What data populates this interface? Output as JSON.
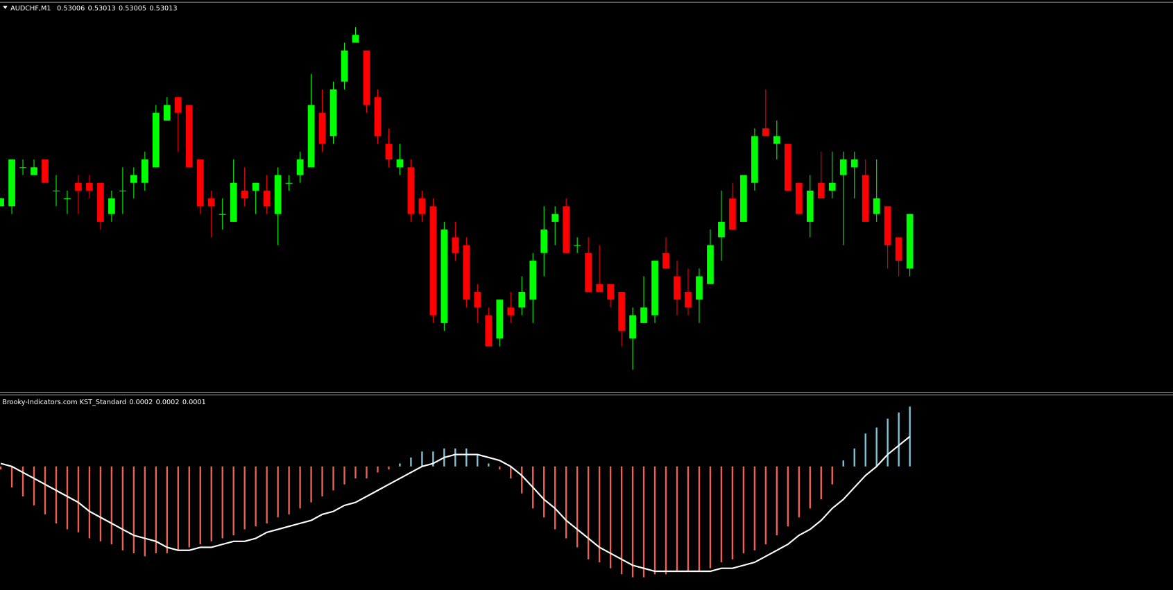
{
  "chart_data": [
    {
      "type": "candlestick",
      "title": "AUDCHF,M1",
      "up_color": "#00ff00",
      "down_color": "#ff0000",
      "ylim": [
        0.5299,
        0.5304
      ],
      "open": [
        0.53014,
        0.53014,
        0.53019,
        0.53018,
        0.5302,
        0.53016,
        0.53015,
        0.53017,
        0.53017,
        0.53017,
        0.53013,
        0.53016,
        0.53017,
        0.53017,
        0.53019,
        0.53025,
        0.53028,
        0.53027,
        0.5302,
        0.53015,
        0.53013,
        0.53012,
        0.53016,
        0.53016,
        0.53016,
        0.53013,
        0.53017,
        0.53018,
        0.53019,
        0.53026,
        0.53023,
        0.5303,
        0.53035,
        0.53034,
        0.53028,
        0.53022,
        0.53019,
        0.53019,
        0.53015,
        0.53014,
        0.52999,
        0.5301,
        0.53009,
        0.53003,
        0.53,
        0.52997,
        0.53001,
        0.53001,
        0.53002,
        0.53008,
        0.53012,
        0.53014,
        0.53009,
        0.53008,
        0.53004,
        0.53004,
        0.53003,
        0.52997,
        0.52999,
        0.53,
        0.53008,
        0.53005,
        0.53003,
        0.53002,
        0.53004,
        0.5301,
        0.53015,
        0.53012,
        0.53017,
        0.53024,
        0.53022,
        0.53022,
        0.53017,
        0.53012,
        0.53017,
        0.53016,
        0.53018,
        0.53019,
        0.53018,
        0.53013,
        0.53014,
        0.5301,
        0.53006
      ],
      "high": [
        0.53015,
        0.5302,
        0.5302,
        0.5302,
        0.5302,
        0.53018,
        0.53016,
        0.53018,
        0.53018,
        0.53017,
        0.53016,
        0.53019,
        0.53019,
        0.53021,
        0.53027,
        0.53028,
        0.53028,
        0.53027,
        0.5302,
        0.53016,
        0.53015,
        0.5302,
        0.53019,
        0.53017,
        0.53018,
        0.53019,
        0.53018,
        0.53021,
        0.53031,
        0.53029,
        0.5303,
        0.53035,
        0.53037,
        0.53034,
        0.53029,
        0.53024,
        0.53022,
        0.5302,
        0.53016,
        0.53015,
        0.53012,
        0.53012,
        0.5301,
        0.53004,
        0.53001,
        0.53002,
        0.53003,
        0.53005,
        0.53008,
        0.53014,
        0.53014,
        0.53015,
        0.5301,
        0.5301,
        0.53009,
        0.53004,
        0.53003,
        0.53001,
        0.53005,
        0.53007,
        0.5301,
        0.53007,
        0.53006,
        0.53006,
        0.53011,
        0.53016,
        0.53017,
        0.53018,
        0.53024,
        0.53029,
        0.53025,
        0.53022,
        0.53017,
        0.53018,
        0.53021,
        0.53021,
        0.53021,
        0.53021,
        0.5302,
        0.5302,
        0.53014,
        0.5301,
        0.53013
      ],
      "low": [
        0.53014,
        0.53013,
        0.53018,
        0.53018,
        0.53017,
        0.53014,
        0.53013,
        0.53013,
        0.53015,
        0.53011,
        0.53012,
        0.53013,
        0.53015,
        0.53016,
        0.53019,
        0.53025,
        0.53021,
        0.53019,
        0.53013,
        0.5301,
        0.53011,
        0.53012,
        0.53014,
        0.53013,
        0.53013,
        0.53009,
        0.53016,
        0.53017,
        0.53019,
        0.53021,
        0.53022,
        0.53029,
        0.53035,
        0.53026,
        0.53022,
        0.53019,
        0.53018,
        0.53012,
        0.53012,
        0.52999,
        0.52998,
        0.53007,
        0.53001,
        0.52999,
        0.52996,
        0.52996,
        0.52999,
        0.53,
        0.52999,
        0.53005,
        0.53009,
        0.53008,
        0.53008,
        0.53003,
        0.53003,
        0.53001,
        0.52996,
        0.52993,
        0.52999,
        0.52999,
        0.53006,
        0.53,
        0.53,
        0.52999,
        0.53004,
        0.53007,
        0.53011,
        0.53012,
        0.53016,
        0.53023,
        0.5302,
        0.53016,
        0.53013,
        0.5301,
        0.53015,
        0.53015,
        0.53009,
        0.53015,
        0.53012,
        0.53012,
        0.53006,
        0.53005,
        0.53005
      ],
      "close": [
        0.53015,
        0.5302,
        0.53019,
        0.53019,
        0.53017,
        0.53016,
        0.53015,
        0.53016,
        0.53016,
        0.53012,
        0.53015,
        0.53016,
        0.53018,
        0.5302,
        0.53026,
        0.53027,
        0.53026,
        0.53019,
        0.53014,
        0.53014,
        0.53013,
        0.53017,
        0.53015,
        0.53017,
        0.53014,
        0.53018,
        0.53017,
        0.5302,
        0.53027,
        0.53022,
        0.53029,
        0.53034,
        0.53036,
        0.53027,
        0.53023,
        0.5302,
        0.5302,
        0.53013,
        0.53013,
        0.53,
        0.53011,
        0.53008,
        0.53002,
        0.53001,
        0.52996,
        0.53002,
        0.53,
        0.53003,
        0.53007,
        0.53011,
        0.53013,
        0.53008,
        0.53009,
        0.53003,
        0.53003,
        0.53002,
        0.52998,
        0.53,
        0.53001,
        0.53007,
        0.53006,
        0.53002,
        0.53001,
        0.53005,
        0.53009,
        0.53012,
        0.53011,
        0.53018,
        0.53023,
        0.53023,
        0.53023,
        0.53016,
        0.53013,
        0.53016,
        0.53015,
        0.53017,
        0.5302,
        0.5302,
        0.53012,
        0.53015,
        0.53009,
        0.53007,
        0.53013
      ]
    },
    {
      "type": "kst",
      "title": "Brooky-Indicators.com KST_Standard",
      "header_values": [
        0.0002,
        0.0002,
        0.0001
      ],
      "ylim": [
        -0.00041,
        0.00024
      ],
      "histogram": {
        "positive_color": "#7fc6d8",
        "negative_color": "#f0604f",
        "values": [
          -1e-05,
          -7e-05,
          -0.0001,
          -0.00013,
          -0.00016,
          -0.00019,
          -0.00021,
          -0.00022,
          -0.00024,
          -0.00025,
          -0.00026,
          -0.00028,
          -0.00029,
          -0.0003,
          -0.00029,
          -0.00029,
          -0.00028,
          -0.00027,
          -0.00026,
          -0.00025,
          -0.00024,
          -0.00023,
          -0.00021,
          -0.0002,
          -0.00019,
          -0.00017,
          -0.00016,
          -0.00014,
          -0.00012,
          -0.0001,
          -8e-05,
          -6e-05,
          -4e-05,
          -4e-05,
          -2e-05,
          -1e-05,
          1e-05,
          3e-05,
          5e-05,
          5e-05,
          6e-05,
          6e-05,
          6e-05,
          4e-05,
          1e-05,
          -1e-05,
          -4e-05,
          -9e-05,
          -0.00014,
          -0.00017,
          -0.00021,
          -0.00024,
          -0.00027,
          -0.00031,
          -0.00032,
          -0.00034,
          -0.00036,
          -0.00037,
          -0.00037,
          -0.00036,
          -0.00036,
          -0.00035,
          -0.00035,
          -0.00035,
          -0.00034,
          -0.00032,
          -0.00031,
          -0.00029,
          -0.00028,
          -0.00026,
          -0.00023,
          -0.0002,
          -0.00017,
          -0.00014,
          -0.00011,
          -6e-05,
          2e-05,
          6e-05,
          0.00011,
          0.00013,
          0.00016,
          0.00018,
          0.0002
        ]
      },
      "signal": {
        "color": "#ffffff",
        "values": [
          1e-05,
          0,
          -2e-05,
          -4e-05,
          -6e-05,
          -8e-05,
          -0.0001,
          -0.00012,
          -0.00015,
          -0.00017,
          -0.00019,
          -0.00021,
          -0.00023,
          -0.00024,
          -0.00025,
          -0.00027,
          -0.00028,
          -0.00028,
          -0.00027,
          -0.00027,
          -0.00026,
          -0.00025,
          -0.00025,
          -0.00024,
          -0.00022,
          -0.00021,
          -0.0002,
          -0.00019,
          -0.00018,
          -0.00016,
          -0.00015,
          -0.00013,
          -0.00012,
          -0.0001,
          -8e-05,
          -6e-05,
          -4e-05,
          -2e-05,
          0,
          1e-05,
          3e-05,
          4e-05,
          4e-05,
          4e-05,
          3e-05,
          2e-05,
          0,
          -3e-05,
          -7e-05,
          -0.00011,
          -0.00014,
          -0.00018,
          -0.00021,
          -0.00024,
          -0.00027,
          -0.00029,
          -0.00031,
          -0.00033,
          -0.00034,
          -0.00035,
          -0.00035,
          -0.00035,
          -0.00035,
          -0.00035,
          -0.00035,
          -0.00034,
          -0.00034,
          -0.00033,
          -0.00032,
          -0.0003,
          -0.00028,
          -0.00026,
          -0.00023,
          -0.00021,
          -0.00018,
          -0.00014,
          -0.00011,
          -7e-05,
          -3e-05,
          0,
          4e-05,
          7e-05,
          0.0001
        ]
      }
    }
  ]
}
